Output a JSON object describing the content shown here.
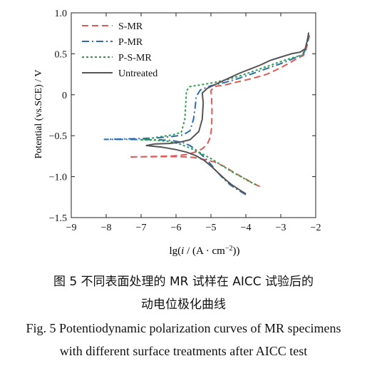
{
  "caption": {
    "cn_line1": "图 5    不同表面处理的 MR 试样在 AICC 试验后的",
    "cn_line2": "动电位极化曲线",
    "en_line1": "Fig. 5    Potentiodynamic polarization curves of MR specimens",
    "en_line2": "with different surface treatments after AICC test"
  },
  "chart_data": {
    "type": "line",
    "title": "",
    "xlabel": "lg(i / (A · cm⁻²))",
    "ylabel": "Potential (vs.SCE) / V",
    "xlim": [
      -9,
      -2
    ],
    "ylim": [
      -1.5,
      1.0
    ],
    "xticks": [
      -9,
      -8,
      -7,
      -6,
      -5,
      -4,
      -3,
      -2
    ],
    "yticks": [
      -1.5,
      -1.0,
      -0.5,
      0,
      0.5,
      1.0
    ],
    "xtick_labels": [
      "−9",
      "−8",
      "−7",
      "−6",
      "−5",
      "−4",
      "−3",
      "−2"
    ],
    "ytick_labels": [
      "−1.5",
      "−1.0",
      "−0.5",
      "0",
      "0.5",
      "1.0"
    ],
    "grid": false,
    "legend_position": "top-left",
    "series": [
      {
        "name": "S-MR",
        "color": "#e05a55",
        "dash": "long-dash",
        "points": [
          [
            -3.6,
            -1.12
          ],
          [
            -3.8,
            -1.08
          ],
          [
            -4.0,
            -1.03
          ],
          [
            -4.3,
            -0.96
          ],
          [
            -4.6,
            -0.88
          ],
          [
            -4.9,
            -0.82
          ],
          [
            -5.2,
            -0.79
          ],
          [
            -5.5,
            -0.765
          ],
          [
            -5.8,
            -0.757
          ],
          [
            -6.2,
            -0.755
          ],
          [
            -6.6,
            -0.757
          ],
          [
            -7.0,
            -0.758
          ],
          [
            -7.35,
            -0.76
          ],
          [
            -7.0,
            -0.757
          ],
          [
            -6.5,
            -0.753
          ],
          [
            -6.0,
            -0.745
          ],
          [
            -5.7,
            -0.73
          ],
          [
            -5.45,
            -0.7
          ],
          [
            -5.25,
            -0.66
          ],
          [
            -5.1,
            -0.6
          ],
          [
            -5.02,
            -0.52
          ],
          [
            -4.98,
            -0.4
          ],
          [
            -4.97,
            -0.2
          ],
          [
            -4.98,
            -0.05
          ],
          [
            -5.0,
            0.05
          ],
          [
            -4.9,
            0.1
          ],
          [
            -4.6,
            0.12
          ],
          [
            -4.2,
            0.16
          ],
          [
            -3.8,
            0.2
          ],
          [
            -3.4,
            0.25
          ],
          [
            -3.0,
            0.33
          ],
          [
            -2.7,
            0.4
          ],
          [
            -2.5,
            0.45
          ],
          [
            -2.35,
            0.48
          ],
          [
            -2.28,
            0.55
          ],
          [
            -2.22,
            0.65
          ],
          [
            -2.18,
            0.72
          ]
        ]
      },
      {
        "name": "P-MR",
        "color": "#2b6cb0",
        "dash": "dash-dot",
        "points": [
          [
            -4.0,
            -1.22
          ],
          [
            -4.2,
            -1.17
          ],
          [
            -4.45,
            -1.1
          ],
          [
            -4.65,
            -1.02
          ],
          [
            -4.85,
            -0.93
          ],
          [
            -5.0,
            -0.85
          ],
          [
            -5.15,
            -0.78
          ],
          [
            -5.3,
            -0.72
          ],
          [
            -5.45,
            -0.665
          ],
          [
            -5.6,
            -0.62
          ],
          [
            -5.8,
            -0.585
          ],
          [
            -6.1,
            -0.56
          ],
          [
            -6.5,
            -0.55
          ],
          [
            -7.0,
            -0.547
          ],
          [
            -7.5,
            -0.545
          ],
          [
            -8.05,
            -0.545
          ],
          [
            -7.5,
            -0.54
          ],
          [
            -7.0,
            -0.535
          ],
          [
            -6.5,
            -0.525
          ],
          [
            -6.1,
            -0.51
          ],
          [
            -5.8,
            -0.49
          ],
          [
            -5.6,
            -0.44
          ],
          [
            -5.5,
            -0.3
          ],
          [
            -5.45,
            -0.15
          ],
          [
            -5.42,
            -0.02
          ],
          [
            -5.3,
            0.06
          ],
          [
            -5.0,
            0.11
          ],
          [
            -4.6,
            0.15
          ],
          [
            -4.2,
            0.2
          ],
          [
            -3.8,
            0.26
          ],
          [
            -3.4,
            0.32
          ],
          [
            -3.0,
            0.38
          ],
          [
            -2.7,
            0.43
          ],
          [
            -2.5,
            0.47
          ],
          [
            -2.35,
            0.5
          ],
          [
            -2.25,
            0.6
          ],
          [
            -2.2,
            0.73
          ]
        ]
      },
      {
        "name": "P-S-MR",
        "color": "#27a046",
        "dash": "dotted",
        "points": [
          [
            -3.7,
            -1.1
          ],
          [
            -3.9,
            -1.06
          ],
          [
            -4.1,
            -1.01
          ],
          [
            -4.4,
            -0.94
          ],
          [
            -4.7,
            -0.86
          ],
          [
            -5.0,
            -0.78
          ],
          [
            -5.3,
            -0.71
          ],
          [
            -5.6,
            -0.65
          ],
          [
            -5.9,
            -0.6
          ],
          [
            -6.2,
            -0.57
          ],
          [
            -6.6,
            -0.555
          ],
          [
            -7.0,
            -0.55
          ],
          [
            -6.7,
            -0.53
          ],
          [
            -6.4,
            -0.51
          ],
          [
            -6.1,
            -0.49
          ],
          [
            -5.85,
            -0.46
          ],
          [
            -5.75,
            -0.3
          ],
          [
            -5.72,
            -0.1
          ],
          [
            -5.7,
            0.05
          ],
          [
            -5.6,
            0.1
          ],
          [
            -5.3,
            0.12
          ],
          [
            -4.9,
            0.15
          ],
          [
            -4.5,
            0.19
          ],
          [
            -4.1,
            0.24
          ],
          [
            -3.7,
            0.3
          ],
          [
            -3.3,
            0.36
          ],
          [
            -2.9,
            0.42
          ],
          [
            -2.6,
            0.46
          ],
          [
            -2.4,
            0.48
          ],
          [
            -2.3,
            0.56
          ],
          [
            -2.23,
            0.68
          ],
          [
            -2.18,
            0.74
          ]
        ]
      },
      {
        "name": "Untreated",
        "color": "#555555",
        "dash": "solid",
        "points": [
          [
            -4.0,
            -1.21
          ],
          [
            -4.15,
            -1.17
          ],
          [
            -4.4,
            -1.1
          ],
          [
            -4.6,
            -1.03
          ],
          [
            -4.8,
            -0.95
          ],
          [
            -5.0,
            -0.87
          ],
          [
            -5.2,
            -0.8
          ],
          [
            -5.45,
            -0.74
          ],
          [
            -5.7,
            -0.7
          ],
          [
            -6.0,
            -0.67
          ],
          [
            -6.4,
            -0.64
          ],
          [
            -6.85,
            -0.62
          ],
          [
            -6.6,
            -0.6
          ],
          [
            -6.2,
            -0.595
          ],
          [
            -5.9,
            -0.58
          ],
          [
            -5.6,
            -0.55
          ],
          [
            -5.35,
            -0.45
          ],
          [
            -5.25,
            -0.3
          ],
          [
            -5.22,
            -0.1
          ],
          [
            -5.25,
            0.02
          ],
          [
            -5.1,
            0.08
          ],
          [
            -4.8,
            0.14
          ],
          [
            -4.5,
            0.2
          ],
          [
            -4.2,
            0.26
          ],
          [
            -3.9,
            0.31
          ],
          [
            -3.6,
            0.36
          ],
          [
            -3.3,
            0.42
          ],
          [
            -3.0,
            0.46
          ],
          [
            -2.7,
            0.5
          ],
          [
            -2.45,
            0.52
          ],
          [
            -2.3,
            0.56
          ],
          [
            -2.24,
            0.66
          ],
          [
            -2.2,
            0.76
          ]
        ]
      }
    ]
  }
}
